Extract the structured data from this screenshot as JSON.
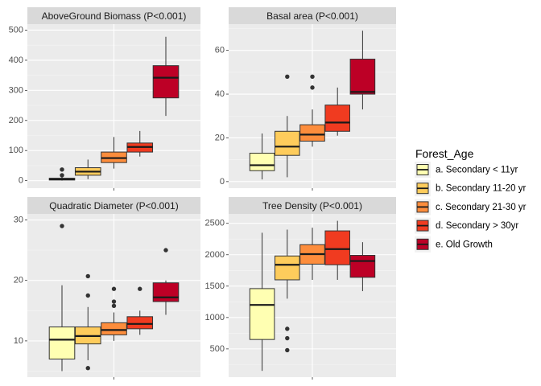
{
  "chart_data": {
    "type": "box",
    "legend": {
      "title": "Forest_Age",
      "position": "right",
      "items": [
        {
          "label": "a. Secondary < 11yr",
          "color": "#FFFFB2"
        },
        {
          "label": "b. Secondary 11-20 yr",
          "color": "#FECC5C"
        },
        {
          "label": "c. Secondary 21-30 yr",
          "color": "#FD8D3C"
        },
        {
          "label": "d. Secondary > 30yr",
          "color": "#F03B20"
        },
        {
          "label": "e. Old Growth",
          "color": "#BD0026"
        }
      ]
    },
    "panels": [
      {
        "title": "AboveGround Biomass (P<0.001)",
        "ylim": [
          -25,
          520
        ],
        "yticks": [
          0,
          100,
          200,
          300,
          400,
          500
        ],
        "boxes": [
          {
            "group": "a. Secondary < 11yr",
            "lower": 0,
            "q1": 2,
            "median": 5,
            "q3": 8,
            "upper": 12,
            "outliers": [
              18,
              37
            ]
          },
          {
            "group": "b. Secondary 11-20 yr",
            "lower": 5,
            "q1": 18,
            "median": 30,
            "q3": 43,
            "upper": 70,
            "outliers": []
          },
          {
            "group": "c. Secondary 21-30 yr",
            "lower": 40,
            "q1": 60,
            "median": 75,
            "q3": 95,
            "upper": 145,
            "outliers": []
          },
          {
            "group": "d. Secondary > 30yr",
            "lower": 80,
            "q1": 95,
            "median": 112,
            "q3": 125,
            "upper": 165,
            "outliers": []
          },
          {
            "group": "e. Old Growth",
            "lower": 215,
            "q1": 275,
            "median": 342,
            "q3": 382,
            "upper": 478,
            "outliers": []
          }
        ]
      },
      {
        "title": "Basal area (P<0.001)",
        "ylim": [
          -3,
          72
        ],
        "yticks": [
          0,
          20,
          40,
          60
        ],
        "boxes": [
          {
            "group": "a. Secondary < 11yr",
            "lower": 1,
            "q1": 5,
            "median": 7.5,
            "q3": 13,
            "upper": 22,
            "outliers": []
          },
          {
            "group": "b. Secondary 11-20 yr",
            "lower": 2,
            "q1": 12,
            "median": 16,
            "q3": 23,
            "upper": 30,
            "outliers": [
              48
            ]
          },
          {
            "group": "c. Secondary 21-30 yr",
            "lower": 16,
            "q1": 18.5,
            "median": 21.5,
            "q3": 26,
            "upper": 33,
            "outliers": [
              43,
              48
            ]
          },
          {
            "group": "d. Secondary > 30yr",
            "lower": 21,
            "q1": 23,
            "median": 27,
            "q3": 35,
            "upper": 43,
            "outliers": []
          },
          {
            "group": "e. Old Growth",
            "lower": 33,
            "q1": 40,
            "median": 41,
            "q3": 56,
            "upper": 69,
            "outliers": []
          }
        ]
      },
      {
        "title": "Quadratic Diameter (P<0.001)",
        "ylim": [
          4,
          31
        ],
        "yticks": [
          10,
          20,
          30
        ],
        "boxes": [
          {
            "group": "a. Secondary < 11yr",
            "lower": 5,
            "q1": 7,
            "median": 10.2,
            "q3": 12.3,
            "upper": 19.2,
            "outliers": [
              29
            ]
          },
          {
            "group": "b. Secondary 11-20 yr",
            "lower": 6.8,
            "q1": 9.5,
            "median": 10.8,
            "q3": 12.3,
            "upper": 15.6,
            "outliers": [
              5.5,
              17.5,
              20.7
            ]
          },
          {
            "group": "c. Secondary 21-30 yr",
            "lower": 10,
            "q1": 11,
            "median": 11.8,
            "q3": 13,
            "upper": 14.7,
            "outliers": [
              15.8,
              16.5,
              18.6
            ]
          },
          {
            "group": "d. Secondary > 30yr",
            "lower": 11,
            "q1": 12,
            "median": 12.8,
            "q3": 14,
            "upper": 15,
            "outliers": [
              18.6
            ]
          },
          {
            "group": "e. Old Growth",
            "lower": 14.3,
            "q1": 16.5,
            "median": 17.2,
            "q3": 19.6,
            "upper": 20,
            "outliers": [
              25
            ]
          }
        ]
      },
      {
        "title": "Tree Density (P<0.001)",
        "ylim": [
          50,
          2650
        ],
        "yticks": [
          500,
          1000,
          1500,
          2000,
          2500
        ],
        "boxes": [
          {
            "group": "a. Secondary < 11yr",
            "lower": 150,
            "q1": 650,
            "median": 1200,
            "q3": 1460,
            "upper": 2350,
            "outliers": []
          },
          {
            "group": "b. Secondary 11-20 yr",
            "lower": 1300,
            "q1": 1600,
            "median": 1840,
            "q3": 1980,
            "upper": 2400,
            "outliers": [
              480,
              670,
              820
            ]
          },
          {
            "group": "c. Secondary 21-30 yr",
            "lower": 1600,
            "q1": 1850,
            "median": 2010,
            "q3": 2160,
            "upper": 2430,
            "outliers": []
          },
          {
            "group": "d. Secondary > 30yr",
            "lower": 1600,
            "q1": 1840,
            "median": 2090,
            "q3": 2380,
            "upper": 2540,
            "outliers": []
          },
          {
            "group": "e. Old Growth",
            "lower": 1420,
            "q1": 1640,
            "median": 1900,
            "q3": 1990,
            "upper": 2200,
            "outliers": []
          }
        ]
      }
    ]
  }
}
